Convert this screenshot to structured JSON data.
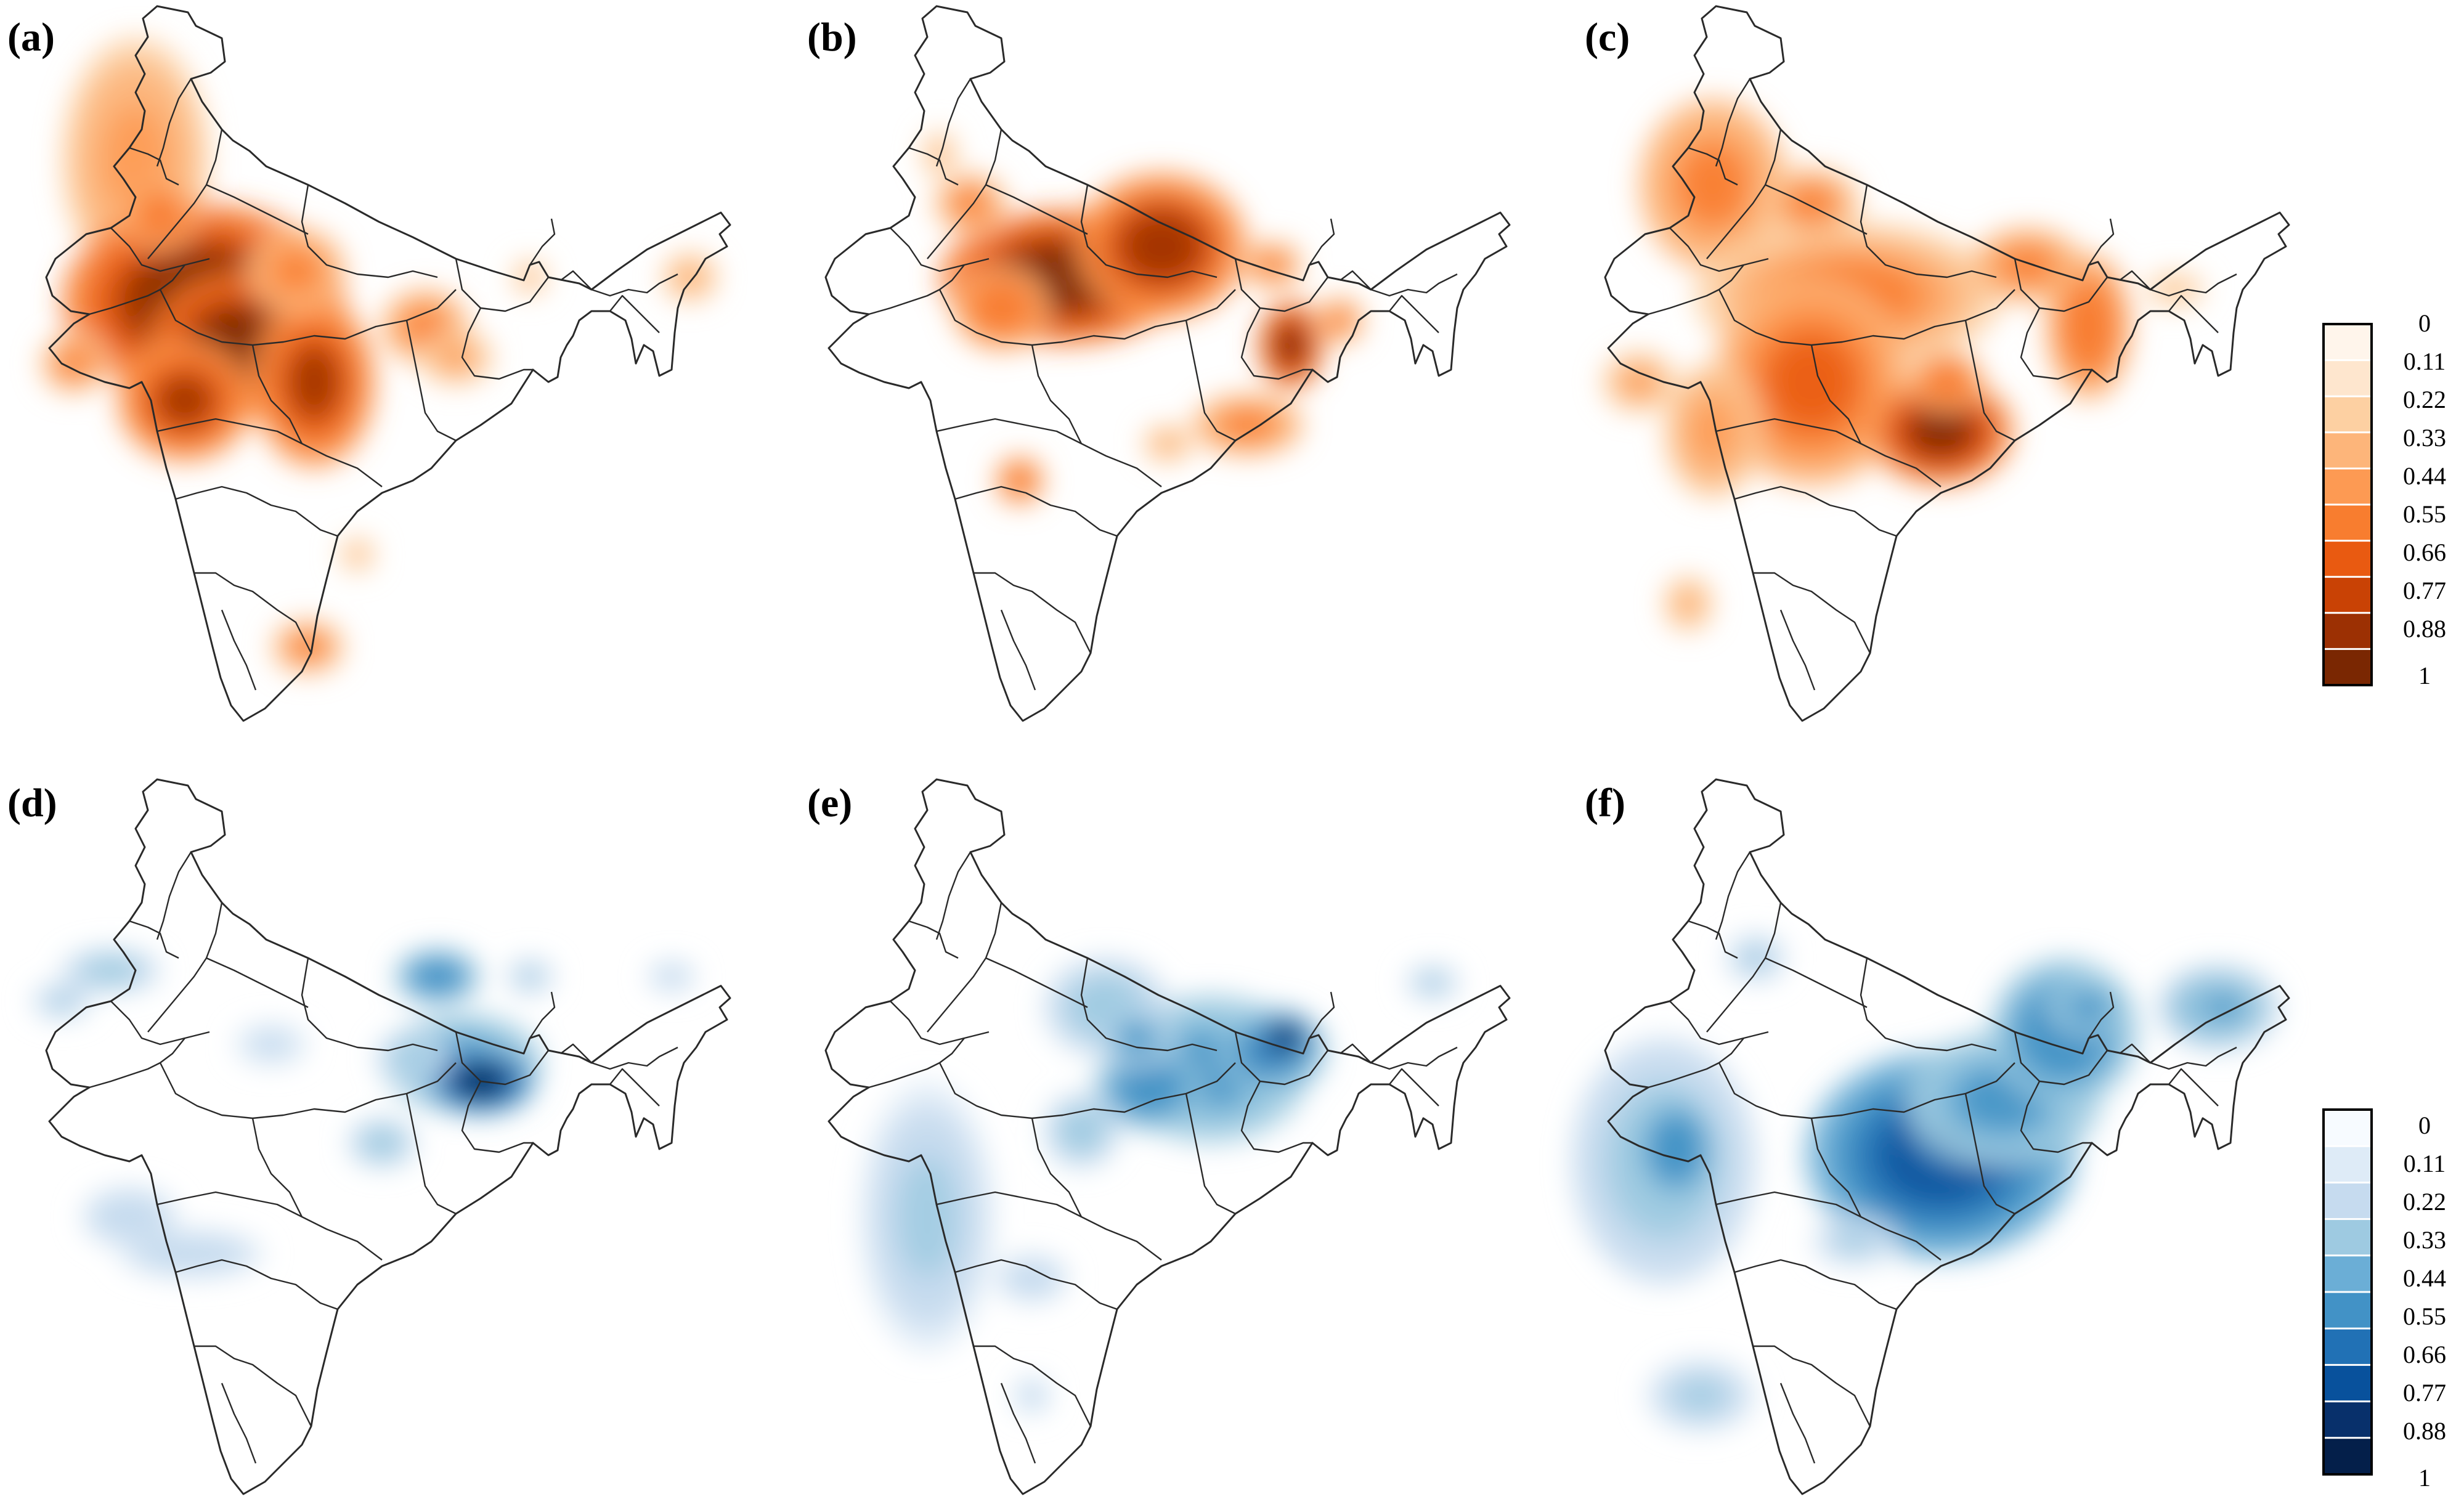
{
  "figure": {
    "panels": [
      {
        "id": "a",
        "label": "(a)",
        "palette": "orange",
        "blobs": [
          [
            160,
            260,
            120,
            200,
            0.45
          ],
          [
            270,
            490,
            230,
            160,
            1.0
          ],
          [
            330,
            560,
            150,
            120,
            1.0
          ],
          [
            240,
            650,
            110,
            100,
            0.85
          ],
          [
            450,
            620,
            100,
            140,
            0.85
          ],
          [
            630,
            530,
            70,
            60,
            0.55
          ],
          [
            680,
            580,
            60,
            45,
            0.4
          ],
          [
            60,
            590,
            55,
            50,
            0.5
          ],
          [
            200,
            350,
            60,
            60,
            0.6
          ],
          [
            420,
            440,
            80,
            70,
            0.55
          ],
          [
            800,
            450,
            30,
            30,
            0.3
          ],
          [
            1060,
            450,
            45,
            40,
            0.35
          ],
          [
            440,
            1050,
            60,
            45,
            0.5
          ],
          [
            520,
            900,
            30,
            30,
            0.3
          ]
        ]
      },
      {
        "id": "b",
        "label": "(b)",
        "palette": "orange",
        "blobs": [
          [
            400,
            450,
            200,
            110,
            1.0
          ],
          [
            560,
            400,
            140,
            120,
            0.9
          ],
          [
            250,
            330,
            60,
            50,
            0.5
          ],
          [
            300,
            500,
            80,
            70,
            0.6
          ],
          [
            770,
            560,
            55,
            75,
            0.95
          ],
          [
            850,
            520,
            40,
            40,
            0.5
          ],
          [
            700,
            690,
            90,
            50,
            0.55
          ],
          [
            570,
            720,
            40,
            30,
            0.35
          ],
          [
            330,
            780,
            40,
            40,
            0.6
          ],
          [
            200,
            250,
            30,
            40,
            0.3
          ],
          [
            740,
            430,
            50,
            40,
            0.5
          ]
        ]
      },
      {
        "id": "c",
        "label": "(c)",
        "palette": "orange",
        "blobs": [
          [
            190,
            300,
            120,
            140,
            0.55
          ],
          [
            410,
            480,
            250,
            120,
            0.5
          ],
          [
            350,
            620,
            160,
            170,
            0.65
          ],
          [
            560,
            700,
            120,
            90,
            0.95
          ],
          [
            570,
            620,
            60,
            50,
            0.6
          ],
          [
            800,
            530,
            70,
            120,
            0.6
          ],
          [
            700,
            430,
            90,
            60,
            0.55
          ],
          [
            190,
            700,
            80,
            110,
            0.45
          ],
          [
            70,
            620,
            60,
            50,
            0.4
          ],
          [
            350,
            330,
            80,
            60,
            0.5
          ],
          [
            150,
            980,
            40,
            45,
            0.35
          ],
          [
            940,
            470,
            50,
            30,
            0.25
          ]
        ]
      },
      {
        "id": "d",
        "label": "(d)",
        "palette": "blue",
        "blobs": [
          [
            690,
            470,
            130,
            80,
            0.55
          ],
          [
            720,
            500,
            90,
            55,
            0.95
          ],
          [
            610,
            460,
            60,
            40,
            0.35
          ],
          [
            650,
            330,
            70,
            45,
            0.6
          ],
          [
            560,
            600,
            55,
            40,
            0.35
          ],
          [
            120,
            320,
            80,
            35,
            0.35
          ],
          [
            40,
            370,
            50,
            30,
            0.3
          ],
          [
            150,
            720,
            80,
            50,
            0.25
          ],
          [
            250,
            780,
            120,
            40,
            0.25
          ],
          [
            380,
            440,
            60,
            35,
            0.2
          ],
          [
            800,
            330,
            40,
            30,
            0.3
          ],
          [
            1030,
            330,
            40,
            25,
            0.25
          ]
        ]
      },
      {
        "id": "e",
        "label": "(e)",
        "palette": "blue",
        "blobs": [
          [
            640,
            480,
            160,
            120,
            0.55
          ],
          [
            740,
            450,
            90,
            70,
            0.7
          ],
          [
            760,
            430,
            50,
            40,
            0.95
          ],
          [
            540,
            510,
            90,
            70,
            0.6
          ],
          [
            470,
            380,
            100,
            80,
            0.35
          ],
          [
            520,
            430,
            60,
            50,
            0.5
          ],
          [
            430,
            580,
            60,
            60,
            0.35
          ],
          [
            180,
            720,
            110,
            220,
            0.3
          ],
          [
            350,
            820,
            60,
            40,
            0.25
          ],
          [
            350,
            1010,
            30,
            30,
            0.25
          ],
          [
            1000,
            340,
            45,
            30,
            0.3
          ]
        ]
      },
      {
        "id": "f",
        "label": "(f)",
        "palette": "blue",
        "blobs": [
          [
            560,
            620,
            220,
            170,
            0.8
          ],
          [
            590,
            580,
            80,
            60,
            1.0
          ],
          [
            660,
            530,
            160,
            110,
            0.55
          ],
          [
            760,
            420,
            120,
            120,
            0.6
          ],
          [
            800,
            380,
            70,
            50,
            0.55
          ],
          [
            1010,
            380,
            100,
            70,
            0.5
          ],
          [
            1020,
            380,
            60,
            40,
            0.55
          ],
          [
            110,
            630,
            150,
            200,
            0.35
          ],
          [
            130,
            610,
            70,
            90,
            0.6
          ],
          [
            260,
            300,
            50,
            40,
            0.3
          ],
          [
            170,
            1010,
            90,
            60,
            0.3
          ],
          [
            420,
            760,
            70,
            40,
            0.3
          ]
        ]
      }
    ]
  },
  "colorbars": [
    {
      "id": "orange",
      "ticks": [
        "0",
        "0.11",
        "0.22",
        "0.33",
        "0.44",
        "0.55",
        "0.66",
        "0.77",
        "0.88",
        "1"
      ],
      "colors": [
        "#fff5eb",
        "#fee6ce",
        "#fdd0a2",
        "#fdb57a",
        "#fd9a53",
        "#f87d2f",
        "#e95a11",
        "#c94205",
        "#9c3003",
        "#7a2702"
      ]
    },
    {
      "id": "blue",
      "ticks": [
        "0",
        "0.11",
        "0.22",
        "0.33",
        "0.44",
        "0.55",
        "0.66",
        "0.77",
        "0.88",
        "1"
      ],
      "colors": [
        "#f7fbff",
        "#deebf7",
        "#c6dbef",
        "#9ecae1",
        "#6baed6",
        "#4292c6",
        "#2171b5",
        "#08519c",
        "#08306b",
        "#041f4a"
      ]
    }
  ]
}
